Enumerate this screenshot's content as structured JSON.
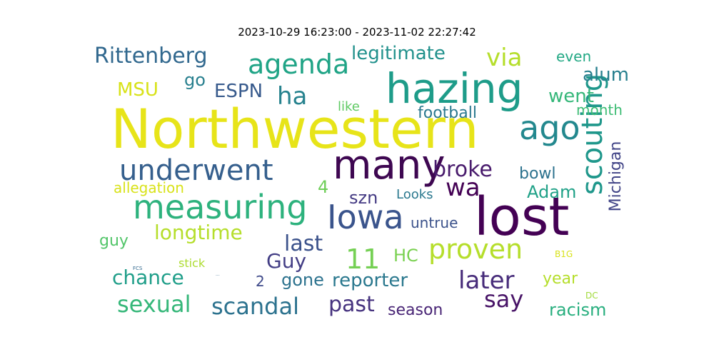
{
  "title": "2023-10-29 16:23:00 - 2023-11-02 22:27:42",
  "words": [
    {
      "text": "Northwestern",
      "color": "#e7e419"
    },
    {
      "text": "hazing",
      "color": "#1e9c89"
    },
    {
      "text": "lost",
      "color": "#440154"
    },
    {
      "text": "many",
      "color": "#3e0751"
    },
    {
      "text": "Iowa",
      "color": "#3a548c"
    },
    {
      "text": "measuring",
      "color": "#2db27d"
    },
    {
      "text": "underwent",
      "color": "#355f8d"
    },
    {
      "text": "scouting",
      "color": "#1f978b"
    },
    {
      "text": "ago",
      "color": "#23888e"
    },
    {
      "text": "agenda",
      "color": "#20a486"
    },
    {
      "text": "proven",
      "color": "#b5de2b"
    },
    {
      "text": "Rittenberg",
      "color": "#31688e"
    },
    {
      "text": "11",
      "color": "#75d054"
    },
    {
      "text": "ha",
      "color": "#26828e"
    },
    {
      "text": "wa",
      "color": "#440154"
    },
    {
      "text": "via",
      "color": "#b5de2b"
    },
    {
      "text": "broke",
      "color": "#481a6c"
    },
    {
      "text": "sexual",
      "color": "#35b779"
    },
    {
      "text": "scandal",
      "color": "#2c728e"
    },
    {
      "text": "later",
      "color": "#472c7a"
    },
    {
      "text": "say",
      "color": "#481467"
    },
    {
      "text": "longtime",
      "color": "#b5de2b"
    },
    {
      "text": "chance",
      "color": "#1f9e89"
    },
    {
      "text": "last",
      "color": "#3b528b"
    },
    {
      "text": "past",
      "color": "#46337f"
    },
    {
      "text": "legitimate",
      "color": "#21918c"
    },
    {
      "text": "reporter",
      "color": "#2a788e"
    },
    {
      "text": "Guy",
      "color": "#433e85"
    },
    {
      "text": "ESPN",
      "color": "#375a8c"
    },
    {
      "text": "MSU",
      "color": "#d8e219"
    },
    {
      "text": "alum",
      "color": "#277f8e"
    },
    {
      "text": "went",
      "color": "#35b779"
    },
    {
      "text": "racism",
      "color": "#29af7f"
    },
    {
      "text": "Adam",
      "color": "#1fa187"
    },
    {
      "text": "go",
      "color": "#277f8e"
    },
    {
      "text": "szn",
      "color": "#443a83"
    },
    {
      "text": "HC",
      "color": "#7ad151"
    },
    {
      "text": "season",
      "color": "#482475"
    },
    {
      "text": "gone",
      "color": "#2c728e"
    },
    {
      "text": "bowl",
      "color": "#2c728e"
    },
    {
      "text": "Michigan",
      "color": "#414487"
    },
    {
      "text": "football",
      "color": "#2a788e"
    },
    {
      "text": "year",
      "color": "#b5de2b"
    },
    {
      "text": "4",
      "color": "#6ece58"
    },
    {
      "text": "guy",
      "color": "#52c569"
    },
    {
      "text": "month",
      "color": "#3dbc74"
    },
    {
      "text": "even",
      "color": "#22a884"
    },
    {
      "text": "untrue",
      "color": "#3b528b"
    },
    {
      "text": "allegation",
      "color": "#d8e219"
    },
    {
      "text": "Looks",
      "color": "#2a788e"
    },
    {
      "text": "like",
      "color": "#5ec962"
    },
    {
      "text": "2",
      "color": "#3e4989"
    },
    {
      "text": "stick",
      "color": "#addc30"
    },
    {
      "text": "B1G",
      "color": "#d8e219"
    },
    {
      "text": "DC",
      "color": "#a0da39"
    },
    {
      "text": "FCS",
      "color": "#31688e"
    },
    {
      "text": "...",
      "color": "#31688e"
    }
  ]
}
